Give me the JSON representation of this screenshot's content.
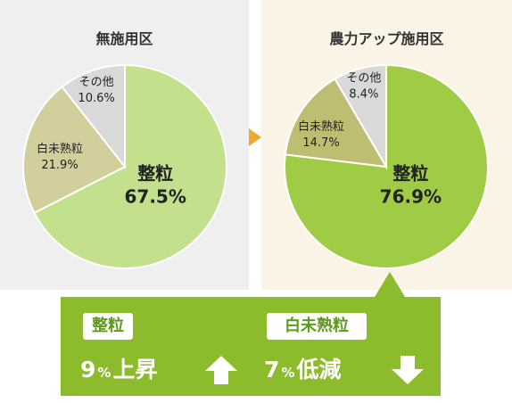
{
  "chart_data": [
    {
      "type": "pie",
      "title": "無施用区",
      "slices": [
        {
          "label": "整粒",
          "value": 67.5,
          "display": "67.5%",
          "color": "#c3e08c"
        },
        {
          "label": "白未熟粒",
          "value": 21.9,
          "display": "21.9%",
          "color": "#d2cf9d"
        },
        {
          "label": "その他",
          "value": 10.6,
          "display": "10.6%",
          "color": "#d9d9d9"
        }
      ]
    },
    {
      "type": "pie",
      "title": "農力アップ施用区",
      "slices": [
        {
          "label": "整粒",
          "value": 76.9,
          "display": "76.9%",
          "color": "#9fcb45"
        },
        {
          "label": "白未熟粒",
          "value": 14.7,
          "display": "14.7%",
          "color": "#bebd72"
        },
        {
          "label": "その他",
          "value": 8.4,
          "display": "8.4%",
          "color": "#d9d9d9"
        }
      ]
    }
  ],
  "summary": {
    "item1": {
      "badge": "整粒",
      "number": "9",
      "unit": "%",
      "text": "上昇",
      "icon": "up-arrow-icon"
    },
    "item2": {
      "badge": "白未熟粒",
      "number": "7",
      "unit": "%",
      "text": "低減",
      "icon": "down-arrow-icon"
    }
  },
  "colors": {
    "arrow": "#f0a92e",
    "summary_bg": "#8cbb2c",
    "badge_text": "#5f9a1e",
    "panel_left_bg": "#efefef",
    "panel_right_bg": "#faf4e6"
  }
}
